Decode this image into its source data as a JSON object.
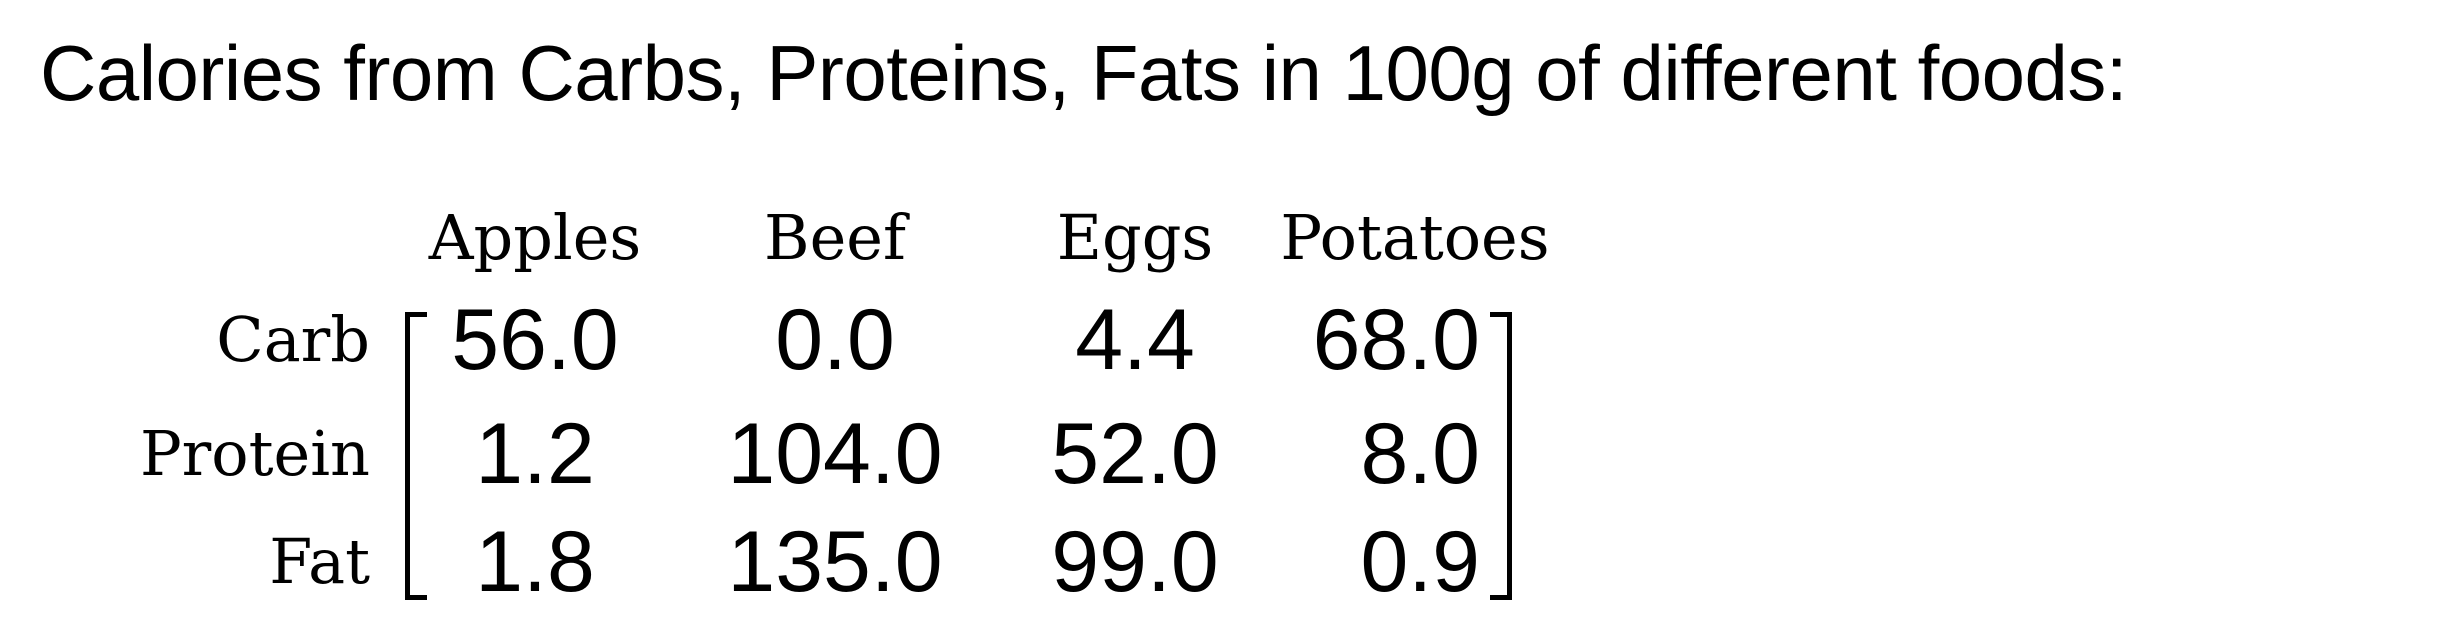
{
  "title": "Calories from Carbs, Proteins, Fats in 100g of different foods:",
  "matrix": {
    "columns": [
      "Apples",
      "Beef",
      "Eggs",
      "Potatoes"
    ],
    "rows": [
      {
        "label": "Carb",
        "values": [
          "56.0",
          "0.0",
          "4.4",
          "68.0"
        ]
      },
      {
        "label": "Protein",
        "values": [
          "1.2",
          "104.0",
          "52.0",
          "8.0"
        ]
      },
      {
        "label": "Fat",
        "values": [
          "1.8",
          "135.0",
          "99.0",
          "0.9"
        ]
      }
    ]
  }
}
